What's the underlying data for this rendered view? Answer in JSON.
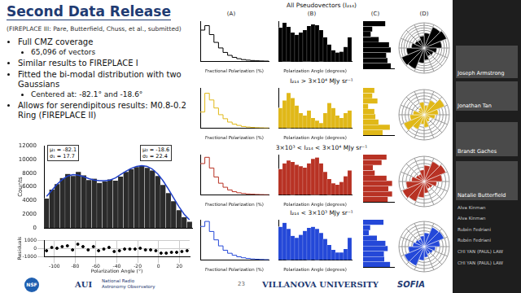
{
  "slide": {
    "title": "Second Data Release",
    "subtitle": "(FIREPLACE III: Pare, Butterfield, Chuss, et al., submitted)",
    "bullets": [
      {
        "text": "Full CMZ coverage",
        "sub": [
          "65,096 of vectors"
        ]
      },
      {
        "text": "Similar results to FIREPLACE I"
      },
      {
        "text": "Fitted the bi-modal distribution with two Gaussians",
        "sub": [
          "Centered at: -82.1° and -18.6°"
        ]
      },
      {
        "text": "Allows for serendipitous results: M0.8-0.2 Ring (FIREPLACE II)"
      }
    ],
    "footer": {
      "logos": [
        "NSF",
        "AUI",
        "National Radio Astronomy Observatory",
        "VILLANOVA UNIVERSITY",
        "SOFIA"
      ],
      "page": "23"
    }
  },
  "grid": {
    "column_labels": [
      "(A)",
      "(B)",
      "(C)",
      "(D)"
    ],
    "row_titles": [
      "All Pseudovectors (I₂₁₄)",
      "I₂₁₄ > 3×10⁴ MJy sr⁻¹",
      "3×10³ < I₂₁₄ < 3×10⁴ MJy sr⁻¹",
      "I₂₁₄ < 3×10³ MJy sr⁻¹"
    ]
  },
  "participants": [
    "Joseph Armstrong",
    "Jonathan Tan",
    "Brandt Gaches",
    "Natalie Butterfield",
    "Alva Kinman",
    "Alva Kinman",
    "Rubén Fedriani",
    "Rubén Fedriani",
    "CHI YAN (PAUL) LAW",
    "CHI YAN (PAUL) LAW"
  ],
  "chart_data": [
    {
      "type": "histogram",
      "ylabel": "Counts",
      "bins": [
        -110,
        -105,
        -100,
        -95,
        -90,
        -85,
        -80,
        -75,
        -70,
        -65,
        -60,
        -55,
        -50,
        -45,
        -40,
        -35,
        -30,
        -25,
        -20,
        -15,
        -10,
        -5,
        0,
        5,
        10,
        15,
        20,
        25,
        30
      ],
      "series": [
        {
          "type": "bar",
          "color": "#2b2b2b",
          "values": [
            4300,
            5600,
            6400,
            7300,
            7900,
            7600,
            8200,
            7700,
            7000,
            7200,
            6600,
            6800,
            7100,
            6900,
            7500,
            8200,
            8600,
            8900,
            9100,
            8800,
            8400,
            7600,
            6300,
            5100,
            3900,
            2600,
            1600,
            900
          ]
        },
        {
          "type": "line",
          "color": "#2040c8",
          "values": [
            4600,
            5500,
            6400,
            7100,
            7600,
            7800,
            7700,
            7500,
            7200,
            7000,
            6900,
            6900,
            7000,
            7300,
            7800,
            8300,
            8700,
            9000,
            9100,
            9000,
            8600,
            7900,
            6900,
            5700,
            4400,
            3100,
            2000,
            1200
          ]
        }
      ],
      "xlim": [
        -110,
        30
      ],
      "xticks": [
        -100,
        -80,
        -60,
        -40,
        -20,
        0,
        20
      ],
      "ylim": [
        0,
        12000
      ],
      "yticks": [
        0,
        2000,
        4000,
        6000,
        8000,
        10000,
        12000
      ],
      "tick_labels": "y",
      "grid": false,
      "annotations": [
        [
          "μ₁ = -82.1",
          "σ₁ = 17.7"
        ],
        [
          "μ₂ = -18.6",
          "σ₂ = 22.4"
        ]
      ]
    },
    {
      "type": "scatter",
      "xlabel": "Polarization Angle (°)",
      "ylabel": "Residuals",
      "color": "#000000",
      "marker": "circle",
      "x": [
        -107.5,
        -102.5,
        -97.5,
        -92.5,
        -87.5,
        -82.5,
        -77.5,
        -72.5,
        -67.5,
        -62.5,
        -57.5,
        -52.5,
        -47.5,
        -42.5,
        -37.5,
        -32.5,
        -27.5,
        -22.5,
        -17.5,
        -12.5,
        -7.5,
        -2.5,
        2.5,
        7.5,
        12.5,
        17.5,
        22.5,
        27.5
      ],
      "values": [
        -300,
        100,
        0,
        200,
        300,
        -200,
        500,
        200,
        -200,
        200,
        -300,
        -100,
        100,
        -400,
        -300,
        -100,
        -100,
        -100,
        0,
        -200,
        -200,
        -300,
        -600,
        -600,
        -500,
        -500,
        -400,
        -300
      ],
      "xlim": [
        -110,
        30
      ],
      "xticks": [
        -100,
        -80,
        -60,
        -40,
        -20,
        0,
        20
      ],
      "ylim": [
        -1000,
        1000
      ],
      "yticks": [
        -1000,
        0,
        1000
      ],
      "grid": true
    },
    {
      "type": "histogram",
      "line_style": "step",
      "color": "#000000",
      "xlabel": "Fractional Polarization (%)",
      "tick_labels": false,
      "bins": [
        0,
        2,
        4,
        6,
        8,
        10,
        12,
        14,
        16,
        18,
        20,
        22,
        24,
        26,
        28,
        30
      ],
      "values": [
        14000,
        16000,
        12000,
        8500,
        6000,
        4000,
        2700,
        1800,
        1200,
        800,
        550,
        380,
        260,
        180,
        120
      ],
      "xlim": [
        0,
        30
      ],
      "ylim": [
        0,
        18000
      ]
    },
    {
      "type": "histogram",
      "color": "#000000",
      "xlabel": "Polarization Angle (degrees)",
      "tick_labels": false,
      "bins": [
        -90,
        -80,
        -70,
        -60,
        -50,
        -40,
        -30,
        -20,
        -10,
        0,
        10,
        20,
        30,
        40,
        50,
        60,
        70,
        80,
        90
      ],
      "values": [
        4200,
        4800,
        4300,
        3600,
        3300,
        3600,
        3900,
        4400,
        4600,
        4500,
        3900,
        3000,
        2100,
        1400,
        1100,
        1200,
        1800,
        3000
      ],
      "xlim": [
        -90,
        90
      ],
      "ylim": [
        0,
        5000
      ]
    },
    {
      "type": "histogram",
      "orientation": "horizontal",
      "color": "#000000",
      "tick_labels": false,
      "bins": [
        -90,
        -70,
        -50,
        -30,
        -10,
        10,
        30,
        50,
        70,
        90
      ],
      "values": [
        9000,
        7900,
        7500,
        9000,
        8400,
        5100,
        2500,
        3000,
        7200
      ],
      "xlim": [
        0,
        10000
      ],
      "ylim": [
        -90,
        90
      ]
    },
    {
      "type": "polar",
      "color": "#000000",
      "bins": [
        0,
        22.5,
        45,
        67.5,
        90,
        112.5,
        135,
        157.5,
        180,
        202.5,
        225,
        247.5,
        270,
        292.5,
        315,
        337.5,
        360
      ],
      "values": [
        3000,
        4500,
        4800,
        3500,
        2500,
        2000,
        1800,
        2400,
        3000,
        4500,
        4800,
        3500,
        2500,
        2000,
        1800,
        2400
      ],
      "ylim": [
        0,
        5000
      ]
    },
    {
      "type": "histogram",
      "line_style": "step",
      "color": "#e0b818",
      "xlabel": "Fractional Polarization (%)",
      "tick_labels": false,
      "bins": [
        0,
        2,
        4,
        6,
        8,
        10,
        12,
        14,
        16,
        18,
        20,
        22,
        24,
        26,
        28,
        30
      ],
      "values": [
        120,
        260,
        210,
        150,
        100,
        70,
        45,
        30,
        20,
        12,
        8,
        5,
        3,
        2,
        1
      ],
      "xlim": [
        0,
        30
      ],
      "ylim": [
        0,
        300
      ]
    },
    {
      "type": "histogram",
      "color": "#e0b818",
      "xlabel": "Polarization Angle (degrees)",
      "tick_labels": false,
      "bins": [
        -90,
        -80,
        -70,
        -60,
        -50,
        -40,
        -30,
        -20,
        -10,
        0,
        10,
        20,
        30,
        40,
        50,
        60,
        70,
        80,
        90
      ],
      "values": [
        40,
        55,
        70,
        60,
        45,
        30,
        25,
        35,
        20,
        15,
        10,
        30,
        50,
        40,
        25,
        20,
        30,
        35
      ],
      "xlim": [
        -90,
        90
      ],
      "ylim": [
        0,
        80
      ]
    },
    {
      "type": "histogram",
      "orientation": "horizontal",
      "color": "#e0b818",
      "tick_labels": false,
      "bins": [
        -90,
        -70,
        -50,
        -30,
        -10,
        10,
        30,
        50,
        70,
        90
      ],
      "values": [
        95,
        130,
        75,
        60,
        55,
        25,
        70,
        45,
        55
      ],
      "xlim": [
        0,
        150
      ],
      "ylim": [
        -90,
        90
      ]
    },
    {
      "type": "polar",
      "color": "#e0b818",
      "bins": [
        0,
        22.5,
        45,
        67.5,
        90,
        112.5,
        135,
        157.5,
        180,
        202.5,
        225,
        247.5,
        270,
        292.5,
        315,
        337.5,
        360
      ],
      "values": [
        30,
        50,
        70,
        45,
        35,
        20,
        25,
        40,
        30,
        50,
        70,
        45,
        35,
        20,
        25,
        40
      ],
      "ylim": [
        0,
        80
      ]
    },
    {
      "type": "histogram",
      "line_style": "step",
      "color": "#b83224",
      "xlabel": "Fractional Polarization (%)",
      "tick_labels": false,
      "bins": [
        0,
        2,
        4,
        6,
        8,
        10,
        12,
        14,
        16,
        18,
        20,
        22,
        24,
        26,
        28,
        30
      ],
      "values": [
        3500,
        4200,
        3000,
        2000,
        1300,
        850,
        550,
        350,
        230,
        150,
        100,
        65,
        40,
        25,
        15
      ],
      "xlim": [
        0,
        30
      ],
      "ylim": [
        0,
        4500
      ]
    },
    {
      "type": "histogram",
      "color": "#b83224",
      "xlabel": "Polarization Angle (degrees)",
      "tick_labels": false,
      "bins": [
        -90,
        -80,
        -70,
        -60,
        -50,
        -40,
        -30,
        -20,
        -10,
        0,
        10,
        20,
        30,
        40,
        50,
        60,
        70,
        80,
        90
      ],
      "values": [
        900,
        1100,
        1200,
        1150,
        1050,
        1000,
        950,
        1100,
        1250,
        1300,
        1100,
        800,
        550,
        400,
        350,
        450,
        650,
        850
      ],
      "xlim": [
        -90,
        90
      ],
      "ylim": [
        0,
        1400
      ]
    },
    {
      "type": "histogram",
      "orientation": "horizontal",
      "color": "#b83224",
      "tick_labels": false,
      "bins": [
        -90,
        -70,
        -50,
        -30,
        -10,
        10,
        30,
        50,
        70,
        90
      ],
      "values": [
        2000,
        2350,
        2050,
        2350,
        1900,
        950,
        800,
        1500,
        1900
      ],
      "xlim": [
        0,
        2500
      ],
      "ylim": [
        -90,
        90
      ]
    },
    {
      "type": "polar",
      "color": "#b83224",
      "bins": [
        0,
        22.5,
        45,
        67.5,
        90,
        112.5,
        135,
        157.5,
        180,
        202.5,
        225,
        247.5,
        270,
        292.5,
        315,
        337.5,
        360
      ],
      "values": [
        900,
        1200,
        1300,
        1000,
        700,
        500,
        450,
        650,
        900,
        1200,
        1300,
        1000,
        700,
        500,
        450,
        650
      ],
      "ylim": [
        0,
        1400
      ]
    },
    {
      "type": "histogram",
      "line_style": "step",
      "color": "#2448d8",
      "xlabel": "Fractional Polarization (%)",
      "tick_labels": false,
      "bins": [
        0,
        2,
        4,
        6,
        8,
        10,
        12,
        14,
        16,
        18,
        20,
        22,
        24,
        26,
        28,
        30
      ],
      "values": [
        10000,
        11500,
        8500,
        6000,
        4200,
        2900,
        2000,
        1400,
        950,
        650,
        450,
        300,
        210,
        150,
        100
      ],
      "xlim": [
        0,
        30
      ],
      "ylim": [
        0,
        12000
      ]
    },
    {
      "type": "histogram",
      "color": "#2448d8",
      "xlabel": "Polarization Angle (degrees)",
      "tick_labels": false,
      "bins": [
        -90,
        -80,
        -70,
        -60,
        -50,
        -40,
        -30,
        -20,
        -10,
        0,
        10,
        20,
        30,
        40,
        50,
        60,
        70,
        80,
        90
      ],
      "values": [
        3300,
        3700,
        3100,
        2400,
        2200,
        2500,
        2900,
        3200,
        3300,
        3100,
        2700,
        2100,
        1500,
        1000,
        750,
        750,
        1100,
        2200
      ],
      "xlim": [
        -90,
        90
      ],
      "ylim": [
        0,
        4000
      ]
    },
    {
      "type": "histogram",
      "orientation": "horizontal",
      "color": "#2448d8",
      "tick_labels": false,
      "bins": [
        -90,
        -70,
        -50,
        -30,
        -10,
        10,
        30,
        50,
        70,
        90
      ],
      "values": [
        7000,
        5500,
        5400,
        6400,
        5800,
        3600,
        1500,
        1850,
        5300
      ],
      "xlim": [
        0,
        8000
      ],
      "ylim": [
        -90,
        90
      ]
    },
    {
      "type": "polar",
      "color": "#2448d8",
      "bins": [
        0,
        22.5,
        45,
        67.5,
        90,
        112.5,
        135,
        157.5,
        180,
        202.5,
        225,
        247.5,
        270,
        292.5,
        315,
        337.5,
        360
      ],
      "values": [
        2200,
        3300,
        3400,
        2500,
        1800,
        1500,
        1300,
        1700,
        2200,
        3300,
        3400,
        2500,
        1800,
        1500,
        1300,
        1700
      ],
      "ylim": [
        0,
        4000
      ]
    }
  ]
}
